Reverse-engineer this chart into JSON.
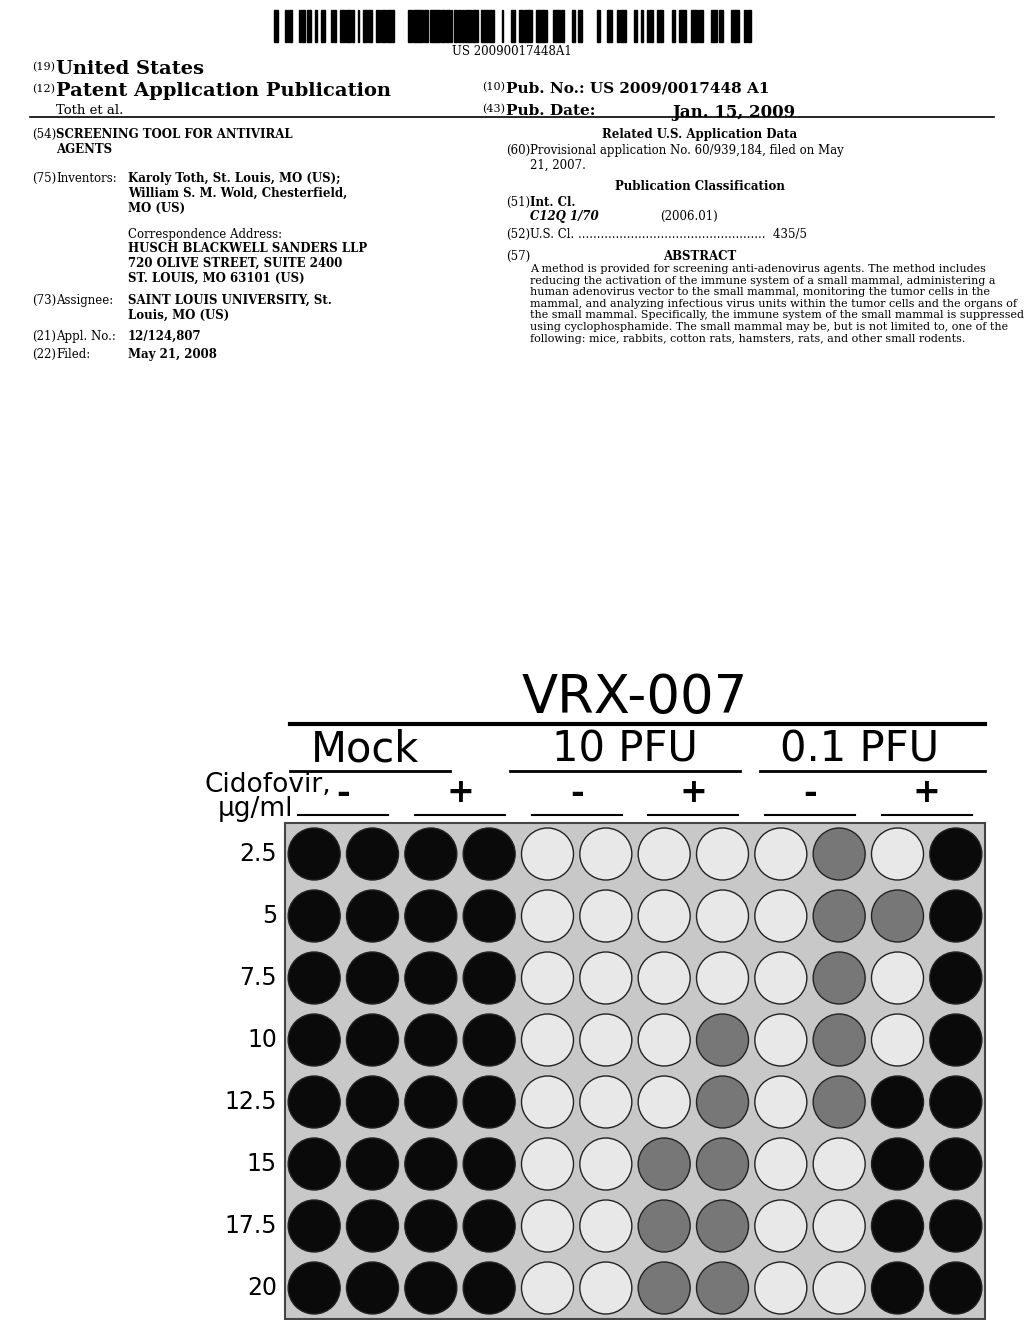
{
  "bg": "#ffffff",
  "barcode_text": "US 20090017448A1",
  "h_line1_num": "(19)",
  "h_line1_text": "United States",
  "h_line2_num": "(12)",
  "h_line2_text": "Patent Application Publication",
  "h_right2_num": "(10)",
  "h_right2_label": "Pub. No.:",
  "h_right2_val": "US 2009/0017448 A1",
  "h_line3_left": "Toth et al.",
  "h_right3_num": "(43)",
  "h_right3_label": "Pub. Date:",
  "h_right3_val": "Jan. 15, 2009",
  "f54_num": "(54)",
  "f54_text": "SCREENING TOOL FOR ANTIVIRAL\nAGENTS",
  "f75_num": "(75)",
  "f75_label": "Inventors:",
  "f75_val": "Karoly Toth, St. Louis, MO (US);\nWilliam S. M. Wold, Chesterfield,\nMO (US)",
  "corr_label": "Correspondence Address:",
  "corr_val": "HUSCH BLACKWELL SANDERS LLP\n720 OLIVE STREET, SUITE 2400\nST. LOUIS, MO 63101 (US)",
  "f73_num": "(73)",
  "f73_label": "Assignee:",
  "f73_val": "SAINT LOUIS UNIVERSITY, St.\nLouis, MO (US)",
  "f21_num": "(21)",
  "f21_label": "Appl. No.:",
  "f21_val": "12/124,807",
  "f22_num": "(22)",
  "f22_label": "Filed:",
  "f22_val": "May 21, 2008",
  "r_related": "Related U.S. Application Data",
  "f60_num": "(60)",
  "f60_val": "Provisional application No. 60/939,184, filed on May\n21, 2007.",
  "r_pubclass": "Publication Classification",
  "f51_num": "(51)",
  "f51_label": "Int. Cl.",
  "f51_val": "C12Q 1/70",
  "f51_year": "(2006.01)",
  "f52_num": "(52)",
  "f52_val": "435/5",
  "f57_num": "(57)",
  "f57_label": "ABSTRACT",
  "f57_val": "A method is provided for screening anti-adenovirus agents. The method includes reducing the activation of the immune system of a small mammal, administering a human adenovirus vector to the small mammal, monitoring the tumor cells in the mammal, and analyzing infectious virus units within the tumor cells and the organs of the small mammal. Specifically, the immune system of the small mammal is suppressed using cyclophosphamide. The small mammal may be, but is not limited to, one of the following: mice, rabbits, cotton rats, hamsters, rats, and other small rodents.",
  "diag_title": "VRX-007",
  "diag_col_headers": [
    "Mock",
    "10 PFU",
    "0.1 PFU"
  ],
  "diag_cid_label": "Cidofovir,",
  "diag_cid_unit": "μg/ml",
  "diag_pm": [
    "-",
    "+",
    "-",
    "+",
    "-",
    "+"
  ],
  "diag_rows": [
    "2.5",
    "5",
    "7.5",
    "10",
    "12.5",
    "15",
    "17.5",
    "20"
  ],
  "circle_fills": [
    [
      "#0a0a0a",
      "#0a0a0a",
      "#0a0a0a",
      "#0a0a0a",
      "#e8e8e8",
      "#e8e8e8",
      "#e8e8e8",
      "#e8e8e8",
      "#e8e8e8",
      "#777",
      "#e8e8e8",
      "#0a0a0a"
    ],
    [
      "#0a0a0a",
      "#0a0a0a",
      "#0a0a0a",
      "#0a0a0a",
      "#e8e8e8",
      "#e8e8e8",
      "#e8e8e8",
      "#e8e8e8",
      "#e8e8e8",
      "#777",
      "#777",
      "#0a0a0a"
    ],
    [
      "#0a0a0a",
      "#0a0a0a",
      "#0a0a0a",
      "#0a0a0a",
      "#e8e8e8",
      "#e8e8e8",
      "#e8e8e8",
      "#e8e8e8",
      "#e8e8e8",
      "#777",
      "#e8e8e8",
      "#0a0a0a"
    ],
    [
      "#0a0a0a",
      "#0a0a0a",
      "#0a0a0a",
      "#0a0a0a",
      "#e8e8e8",
      "#e8e8e8",
      "#e8e8e8",
      "#777",
      "#e8e8e8",
      "#777",
      "#e8e8e8",
      "#0a0a0a"
    ],
    [
      "#0a0a0a",
      "#0a0a0a",
      "#0a0a0a",
      "#0a0a0a",
      "#e8e8e8",
      "#e8e8e8",
      "#e8e8e8",
      "#777",
      "#e8e8e8",
      "#777",
      "#0a0a0a",
      "#0a0a0a"
    ],
    [
      "#0a0a0a",
      "#0a0a0a",
      "#0a0a0a",
      "#0a0a0a",
      "#e8e8e8",
      "#e8e8e8",
      "#777",
      "#777",
      "#e8e8e8",
      "#e8e8e8",
      "#0a0a0a",
      "#0a0a0a"
    ],
    [
      "#0a0a0a",
      "#0a0a0a",
      "#0a0a0a",
      "#0a0a0a",
      "#e8e8e8",
      "#e8e8e8",
      "#777",
      "#777",
      "#e8e8e8",
      "#e8e8e8",
      "#0a0a0a",
      "#0a0a0a"
    ],
    [
      "#0a0a0a",
      "#0a0a0a",
      "#0a0a0a",
      "#0a0a0a",
      "#e8e8e8",
      "#e8e8e8",
      "#777",
      "#777",
      "#e8e8e8",
      "#e8e8e8",
      "#0a0a0a",
      "#0a0a0a"
    ]
  ]
}
